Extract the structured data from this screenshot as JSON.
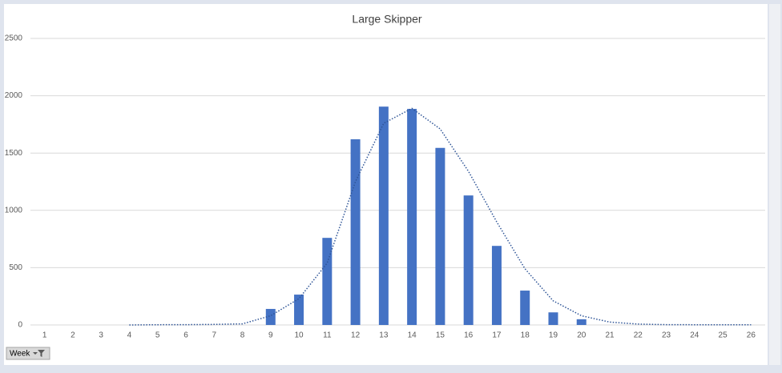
{
  "chart_data": {
    "type": "bar",
    "title": "Large Skipper",
    "categories": [
      1,
      2,
      3,
      4,
      5,
      6,
      7,
      8,
      9,
      10,
      11,
      12,
      13,
      14,
      15,
      16,
      17,
      18,
      19,
      20,
      21,
      22,
      23,
      24,
      25,
      26
    ],
    "values": [
      0,
      0,
      0,
      0,
      0,
      0,
      0,
      0,
      140,
      265,
      760,
      1620,
      1905,
      1885,
      1545,
      1130,
      690,
      300,
      110,
      50,
      0,
      0,
      0,
      0,
      0,
      0
    ],
    "color": "#4472c4",
    "trendline_values": [
      null,
      null,
      null,
      0,
      2,
      3,
      5,
      10,
      80,
      230,
      540,
      1250,
      1760,
      1890,
      1710,
      1340,
      900,
      490,
      210,
      80,
      25,
      8,
      3,
      2,
      2,
      2
    ],
    "trendline_color": "#2f5597",
    "ylim": [
      0,
      2500
    ],
    "yticks": [
      0,
      500,
      1000,
      1500,
      2000,
      2500
    ],
    "grid": true,
    "filter_button": "Week"
  }
}
